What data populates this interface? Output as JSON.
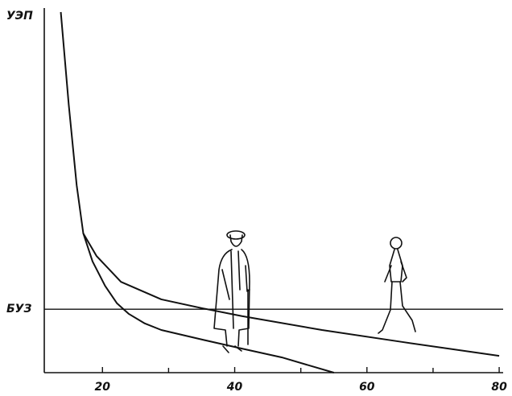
{
  "chart_data": {
    "type": "line",
    "y_label": "УЭП",
    "xlim": [
      11.2,
      80.6
    ],
    "ylim": [
      0,
      100
    ],
    "xticks": [
      20,
      40,
      60,
      80
    ],
    "xminor_ticks": [
      30,
      50,
      70
    ],
    "reference_line": {
      "value": 17.4,
      "label": "БУЗ"
    },
    "series": [
      {
        "color": "#111111",
        "x": [
          13.7,
          14.9,
          16.1,
          17.1,
          19.1,
          22.8,
          28.9,
          35.0,
          41.1,
          53.2,
          65.4,
          80.0
        ],
        "values": [
          98.9,
          73.5,
          51.4,
          38.2,
          32.0,
          24.9,
          20.1,
          17.7,
          15.5,
          11.7,
          8.4,
          4.6
        ]
      },
      {
        "color": "#111111",
        "x": [
          17.1,
          18.5,
          20.4,
          22.2,
          24.0,
          26.4,
          28.9,
          35.0,
          41.1,
          47.1,
          55.0
        ],
        "values": [
          38.2,
          30.5,
          23.8,
          19.0,
          16.1,
          13.5,
          11.7,
          9.1,
          6.6,
          4.2,
          0.0
        ]
      }
    ]
  }
}
